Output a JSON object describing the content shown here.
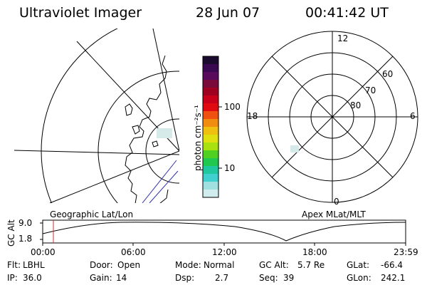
{
  "header": {
    "instrument": "Ultraviolet Imager",
    "date": "28 Jun 07",
    "time": "00:41:42 UT"
  },
  "colorbar": {
    "unit_label": "photon cm⁻²s⁻¹",
    "ticks": [
      "100",
      "10"
    ],
    "colors": [
      "#1a0a2e",
      "#3a0850",
      "#5a0a5a",
      "#7a0a3a",
      "#a00020",
      "#c8001a",
      "#e00a10",
      "#f05010",
      "#f08c10",
      "#f0c010",
      "#e0e010",
      "#a8e010",
      "#50d020",
      "#20c850",
      "#20c8a0",
      "#40d0d0",
      "#a0e0e0",
      "#d0ecec"
    ]
  },
  "left_map": {
    "projection_label": "Geographic Lat/Lon"
  },
  "right_plot": {
    "projection_label": "Apex MLat/MLT",
    "mlt_labels": {
      "top": "12",
      "right": "6",
      "bottom": "0",
      "left": "18"
    },
    "lat_labels": [
      "60",
      "70",
      "80"
    ]
  },
  "alt_plot": {
    "axis_label": "GC Alt",
    "y_ticks": [
      "9.0",
      "1.8"
    ],
    "x_ticks": [
      "00:00",
      "06:00",
      "12:00",
      "18:00",
      "23:59"
    ]
  },
  "status": {
    "row1": [
      {
        "label": "Flt:",
        "value": "LBHL"
      },
      {
        "label": "Door:",
        "value": "Open"
      },
      {
        "label": "Mode:",
        "value": "Normal"
      },
      {
        "label": "GC Alt:",
        "value": "5.7 Re"
      },
      {
        "label": "GLat:",
        "value": "-66.4"
      }
    ],
    "row2": [
      {
        "label": "IP:",
        "value": "36.0"
      },
      {
        "label": "Gain:",
        "value": "14"
      },
      {
        "label": "Dsp:",
        "value": "2.7"
      },
      {
        "label": "Seq:",
        "value": "39"
      },
      {
        "label": "GLon:",
        "value": "242.1"
      }
    ]
  },
  "colors": {
    "alt_marker": "#c83232",
    "coast": "#000000",
    "track": "#3030b0",
    "faint_emission": "#d6eaea"
  }
}
